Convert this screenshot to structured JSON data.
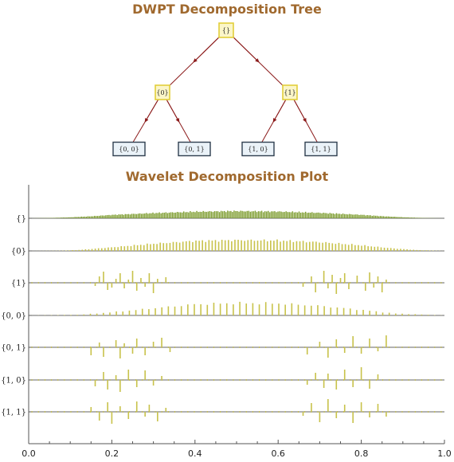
{
  "tree": {
    "title": "DWPT Decomposition Tree",
    "nodes": [
      {
        "id": "root",
        "label": "{}",
        "level": 0,
        "style": "yellow"
      },
      {
        "id": "n0",
        "label": "{0}",
        "level": 1,
        "style": "yellow"
      },
      {
        "id": "n1",
        "label": "{1}",
        "level": 1,
        "style": "yellow"
      },
      {
        "id": "n00",
        "label": "{0, 0}",
        "level": 2,
        "style": "blue"
      },
      {
        "id": "n01",
        "label": "{0, 1}",
        "level": 2,
        "style": "blue"
      },
      {
        "id": "n10",
        "label": "{1, 0}",
        "level": 2,
        "style": "blue"
      },
      {
        "id": "n11",
        "label": "{1, 1}",
        "level": 2,
        "style": "blue"
      }
    ],
    "edges": [
      [
        "root",
        "n0"
      ],
      [
        "root",
        "n1"
      ],
      [
        "n0",
        "n00"
      ],
      [
        "n0",
        "n01"
      ],
      [
        "n1",
        "n10"
      ],
      [
        "n1",
        "n11"
      ]
    ],
    "colors": {
      "yellow_fill": "#fbf6c8",
      "yellow_stroke": "#e2cf3a",
      "blue_fill": "#eaf2f8",
      "blue_stroke": "#2f3f4f",
      "edge": "#8b1a1a"
    }
  },
  "chart_data": {
    "type": "bar",
    "title": "Wavelet Decomposition Plot",
    "xlabel": "",
    "ylabel": "",
    "xlim": [
      0.0,
      1.0
    ],
    "x_ticks": [
      "0.0",
      "0.2",
      "0.4",
      "0.6",
      "0.8",
      "1.0"
    ],
    "grid": false,
    "rows": [
      {
        "label": "{}",
        "color": "#7a9a2a",
        "envelope": [
          [
            0.0,
            0.0
          ],
          [
            0.05,
            0.4
          ],
          [
            0.1,
            1.2
          ],
          [
            0.15,
            2.5
          ],
          [
            0.2,
            4.2
          ],
          [
            0.3,
            6.5
          ],
          [
            0.4,
            8.2
          ],
          [
            0.5,
            9.0
          ],
          [
            0.6,
            8.4
          ],
          [
            0.7,
            6.8
          ],
          [
            0.8,
            4.3
          ],
          [
            0.85,
            2.6
          ],
          [
            0.9,
            1.3
          ],
          [
            0.95,
            0.4
          ],
          [
            1.0,
            0.0
          ]
        ],
        "bar_count": 256
      },
      {
        "label": "{0}",
        "color": "#c8c24a",
        "envelope": [
          [
            0.0,
            0.0
          ],
          [
            0.08,
            0.3
          ],
          [
            0.12,
            1.2
          ],
          [
            0.2,
            4.5
          ],
          [
            0.3,
            9.0
          ],
          [
            0.4,
            12.5
          ],
          [
            0.5,
            13.5
          ],
          [
            0.6,
            13.0
          ],
          [
            0.7,
            11.0
          ],
          [
            0.8,
            7.0
          ],
          [
            0.87,
            3.5
          ],
          [
            0.93,
            1.2
          ],
          [
            1.0,
            0.0
          ]
        ],
        "bar_count": 128
      },
      {
        "label": "{1}",
        "color": "#c8c24a",
        "bars": [
          [
            0.16,
            -4
          ],
          [
            0.17,
            8
          ],
          [
            0.18,
            14
          ],
          [
            0.19,
            -9
          ],
          [
            0.2,
            -6
          ],
          [
            0.21,
            5
          ],
          [
            0.22,
            12
          ],
          [
            0.23,
            -7
          ],
          [
            0.24,
            4
          ],
          [
            0.25,
            15
          ],
          [
            0.26,
            -10
          ],
          [
            0.27,
            6
          ],
          [
            0.28,
            -5
          ],
          [
            0.29,
            12
          ],
          [
            0.3,
            -13
          ],
          [
            0.31,
            5
          ],
          [
            0.33,
            7
          ],
          [
            0.66,
            -5
          ],
          [
            0.68,
            8
          ],
          [
            0.69,
            -12
          ],
          [
            0.71,
            15
          ],
          [
            0.72,
            -7
          ],
          [
            0.73,
            10
          ],
          [
            0.74,
            -14
          ],
          [
            0.75,
            6
          ],
          [
            0.76,
            12
          ],
          [
            0.77,
            -8
          ],
          [
            0.79,
            9
          ],
          [
            0.81,
            -10
          ],
          [
            0.82,
            13
          ],
          [
            0.83,
            -6
          ],
          [
            0.84,
            8
          ],
          [
            0.85,
            -12
          ],
          [
            0.86,
            4
          ]
        ]
      },
      {
        "label": "{0, 0}",
        "color": "#c8c24a",
        "envelope": [
          [
            0.0,
            0.0
          ],
          [
            0.12,
            0.8
          ],
          [
            0.2,
            4.0
          ],
          [
            0.3,
            9.0
          ],
          [
            0.4,
            14.0
          ],
          [
            0.5,
            15.5
          ],
          [
            0.6,
            15.0
          ],
          [
            0.7,
            12.0
          ],
          [
            0.8,
            7.0
          ],
          [
            0.88,
            2.5
          ],
          [
            1.0,
            0.0
          ]
        ],
        "bar_count": 64
      },
      {
        "label": "{0, 1}",
        "color": "#c8c24a",
        "bars": [
          [
            0.15,
            -10
          ],
          [
            0.17,
            6
          ],
          [
            0.18,
            -12
          ],
          [
            0.21,
            9
          ],
          [
            0.22,
            -14
          ],
          [
            0.23,
            5
          ],
          [
            0.25,
            -8
          ],
          [
            0.26,
            11
          ],
          [
            0.28,
            -10
          ],
          [
            0.3,
            7
          ],
          [
            0.32,
            12
          ],
          [
            0.34,
            -6
          ],
          [
            0.67,
            -9
          ],
          [
            0.7,
            7
          ],
          [
            0.72,
            -13
          ],
          [
            0.74,
            10
          ],
          [
            0.76,
            -7
          ],
          [
            0.78,
            14
          ],
          [
            0.8,
            -8
          ],
          [
            0.82,
            11
          ],
          [
            0.84,
            -5
          ],
          [
            0.86,
            15
          ]
        ]
      },
      {
        "label": "{1, 0}",
        "color": "#c8c24a",
        "bars": [
          [
            0.16,
            -8
          ],
          [
            0.18,
            10
          ],
          [
            0.19,
            -12
          ],
          [
            0.21,
            6
          ],
          [
            0.22,
            -15
          ],
          [
            0.24,
            13
          ],
          [
            0.26,
            -9
          ],
          [
            0.28,
            12
          ],
          [
            0.3,
            -7
          ],
          [
            0.32,
            5
          ],
          [
            0.67,
            -6
          ],
          [
            0.69,
            9
          ],
          [
            0.71,
            -10
          ],
          [
            0.72,
            8
          ],
          [
            0.74,
            -12
          ],
          [
            0.76,
            13
          ],
          [
            0.78,
            -9
          ],
          [
            0.8,
            16
          ],
          [
            0.82,
            -11
          ],
          [
            0.84,
            7
          ]
        ]
      },
      {
        "label": "{1, 1}",
        "color": "#c8c24a",
        "bars": [
          [
            0.15,
            6
          ],
          [
            0.17,
            -11
          ],
          [
            0.19,
            12
          ],
          [
            0.2,
            -15
          ],
          [
            0.22,
            7
          ],
          [
            0.24,
            -9
          ],
          [
            0.26,
            13
          ],
          [
            0.28,
            -6
          ],
          [
            0.29,
            9
          ],
          [
            0.31,
            -12
          ],
          [
            0.33,
            5
          ],
          [
            0.66,
            -5
          ],
          [
            0.68,
            11
          ],
          [
            0.7,
            -13
          ],
          [
            0.72,
            16
          ],
          [
            0.74,
            -8
          ],
          [
            0.76,
            9
          ],
          [
            0.78,
            -14
          ],
          [
            0.8,
            12
          ],
          [
            0.82,
            -7
          ],
          [
            0.84,
            10
          ],
          [
            0.86,
            -6
          ]
        ]
      }
    ]
  }
}
